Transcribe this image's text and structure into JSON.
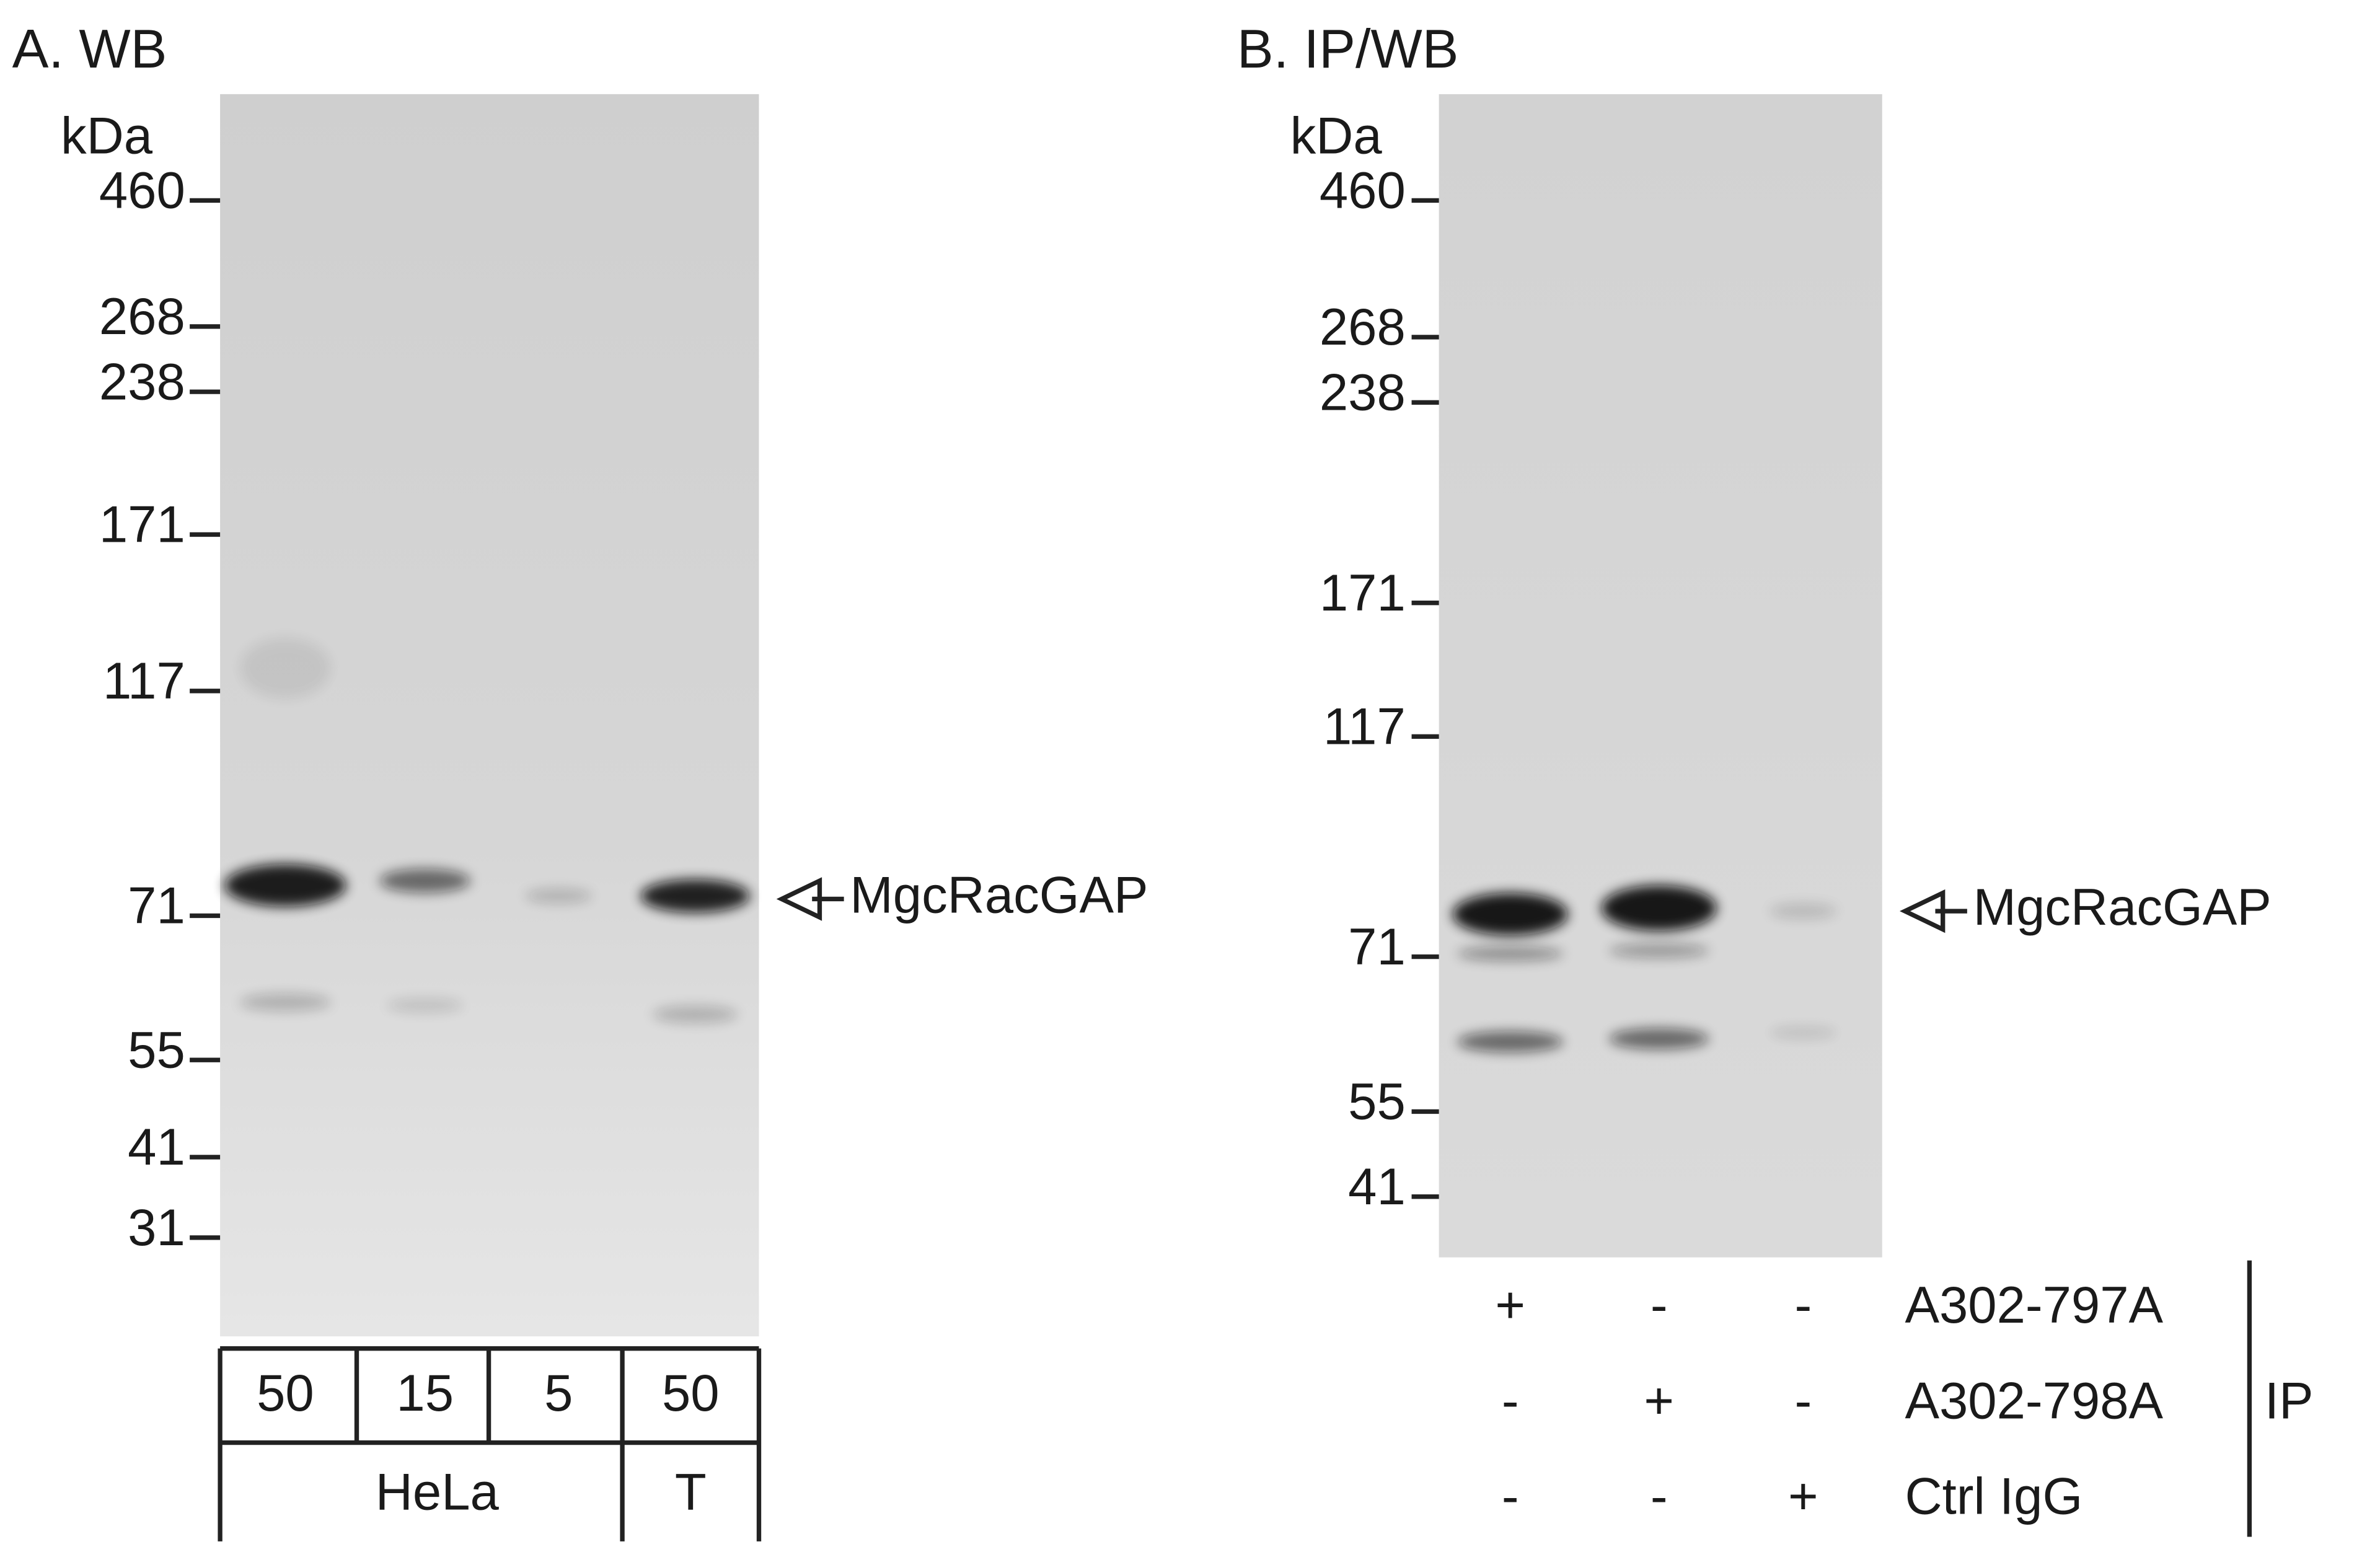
{
  "panel_a": {
    "title": "A. WB",
    "unit": "kDa",
    "markers": [
      460,
      268,
      238,
      171,
      117,
      71,
      55,
      41,
      31
    ],
    "target": "MgcRacGAP",
    "lanes": [
      50,
      15,
      5,
      50
    ],
    "groups": [
      "HeLa",
      "T"
    ]
  },
  "panel_b": {
    "title": "B. IP/WB",
    "unit": "kDa",
    "markers": [
      460,
      268,
      238,
      171,
      117,
      71,
      55,
      41
    ],
    "target": "MgcRacGAP",
    "ip_rows": [
      {
        "label": "A302-797A",
        "signs": [
          "+",
          "-",
          "-"
        ]
      },
      {
        "label": "A302-798A",
        "signs": [
          "-",
          "+",
          "-"
        ]
      },
      {
        "label": "Ctrl IgG",
        "signs": [
          "-",
          "-",
          "+"
        ]
      }
    ],
    "ip_label": "IP"
  }
}
